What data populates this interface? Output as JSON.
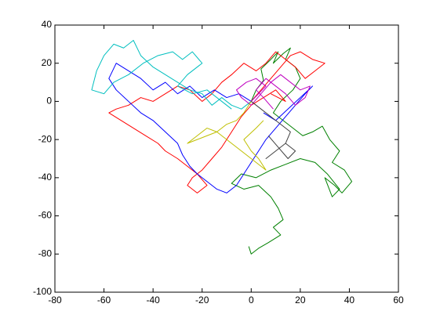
{
  "chart_data": {
    "type": "line",
    "xlim": [
      -80,
      60
    ],
    "xticks": [
      -80,
      -60,
      -40,
      -20,
      0,
      20,
      40,
      60
    ],
    "ylim": [
      -100,
      40
    ],
    "yticks": [
      -100,
      -80,
      -60,
      -40,
      -20,
      0,
      20,
      40
    ],
    "series": [
      {
        "color": "#008000",
        "x": [
          0,
          2,
          5,
          4,
          8,
          11,
          9,
          13,
          16,
          14,
          18,
          20,
          17,
          12,
          9,
          13,
          17,
          21,
          25,
          29,
          32,
          36,
          33,
          38,
          41,
          37,
          34,
          30,
          33,
          36,
          31,
          26,
          20,
          14,
          8,
          2,
          -4,
          -8,
          -3,
          3,
          8,
          11,
          13,
          9,
          12,
          7,
          3,
          0,
          -1
        ],
        "y": [
          0,
          6,
          11,
          17,
          22,
          26,
          20,
          25,
          28,
          22,
          18,
          12,
          6,
          0,
          -6,
          -10,
          -14,
          -18,
          -16,
          -13,
          -20,
          -26,
          -32,
          -36,
          -42,
          -48,
          -44,
          -40,
          -50,
          -46,
          -38,
          -32,
          -30,
          -33,
          -36,
          -40,
          -38,
          -43,
          -46,
          -44,
          -50,
          -56,
          -62,
          -66,
          -70,
          -74,
          -77,
          -80,
          -76
        ]
      },
      {
        "color": "#ff0000",
        "x": [
          0,
          4,
          8,
          12,
          16,
          20,
          25,
          30,
          26,
          22,
          18,
          14,
          10,
          6,
          2,
          -3,
          -8,
          -12,
          -16,
          -20,
          -25,
          -30,
          -35,
          -40,
          -45,
          -50,
          -55,
          -58,
          -53,
          -48,
          -43,
          -38,
          -35,
          -30,
          -26,
          -22,
          -18,
          -22,
          -26,
          -24,
          -20,
          -16,
          -12,
          -8,
          -4,
          0,
          5,
          10,
          14,
          8
        ],
        "y": [
          0,
          6,
          12,
          18,
          24,
          26,
          22,
          20,
          16,
          12,
          18,
          22,
          26,
          20,
          16,
          20,
          14,
          10,
          4,
          0,
          6,
          8,
          4,
          0,
          2,
          -2,
          -4,
          -6,
          -10,
          -14,
          -18,
          -22,
          -26,
          -30,
          -34,
          -38,
          -44,
          -48,
          -44,
          -40,
          -36,
          -30,
          -24,
          -16,
          -8,
          -2,
          2,
          6,
          0,
          4
        ]
      },
      {
        "color": "#0000ff",
        "x": [
          0,
          -5,
          -10,
          -15,
          -20,
          -25,
          -30,
          -35,
          -40,
          -45,
          -50,
          -55,
          -58,
          -55,
          -50,
          -45,
          -40,
          -35,
          -30,
          -28,
          -25,
          -22,
          -18,
          -14,
          -10,
          -6,
          -2,
          2,
          6,
          10,
          14,
          18,
          22,
          25,
          20,
          15,
          10,
          5
        ],
        "y": [
          0,
          4,
          2,
          6,
          2,
          8,
          4,
          10,
          6,
          12,
          16,
          20,
          12,
          6,
          0,
          -6,
          -10,
          -16,
          -22,
          -28,
          -34,
          -38,
          -42,
          -46,
          -48,
          -44,
          -36,
          -28,
          -20,
          -14,
          -8,
          -2,
          4,
          8,
          2,
          -4,
          -10,
          -6
        ]
      },
      {
        "color": "#00bfbf",
        "x": [
          0,
          -4,
          -8,
          -12,
          -16,
          -20,
          -25,
          -30,
          -35,
          -40,
          -45,
          -48,
          -52,
          -56,
          -60,
          -63,
          -65,
          -60,
          -56,
          -50,
          -44,
          -38,
          -32,
          -28,
          -24,
          -20,
          -26,
          -30,
          -24,
          -18,
          -12,
          -8
        ],
        "y": [
          0,
          -4,
          -2,
          2,
          -2,
          4,
          6,
          10,
          14,
          18,
          24,
          32,
          28,
          30,
          24,
          16,
          6,
          4,
          10,
          14,
          20,
          24,
          26,
          22,
          26,
          20,
          14,
          8,
          4,
          6,
          0,
          -4
        ]
      },
      {
        "color": "#bf00bf",
        "x": [
          0,
          3,
          6,
          2,
          -2,
          -6,
          -4,
          0,
          4,
          8,
          12,
          16,
          20,
          24,
          22,
          18,
          14,
          10,
          6,
          2,
          5,
          9
        ],
        "y": [
          0,
          4,
          8,
          12,
          10,
          6,
          2,
          -2,
          4,
          10,
          14,
          10,
          6,
          8,
          2,
          -2,
          4,
          8,
          12,
          6,
          2,
          -4
        ]
      },
      {
        "color": "#bfbf00",
        "x": [
          0,
          -3,
          -6,
          -10,
          -14,
          -18,
          -22,
          -26,
          -22,
          -18,
          -14,
          -10,
          -6,
          -2,
          2,
          6,
          3,
          0,
          -3,
          2,
          5
        ],
        "y": [
          0,
          -6,
          -10,
          -12,
          -16,
          -18,
          -20,
          -22,
          -18,
          -14,
          -16,
          -20,
          -24,
          -28,
          -32,
          -36,
          -30,
          -26,
          -20,
          -14,
          -10
        ]
      },
      {
        "color": "#404040",
        "x": [
          0,
          4,
          8,
          12,
          16,
          14,
          10,
          6,
          10,
          14,
          18,
          15,
          11,
          7
        ],
        "y": [
          0,
          -4,
          -8,
          -12,
          -16,
          -22,
          -26,
          -30,
          -26,
          -22,
          -26,
          -30,
          -24,
          -18
        ]
      }
    ]
  }
}
